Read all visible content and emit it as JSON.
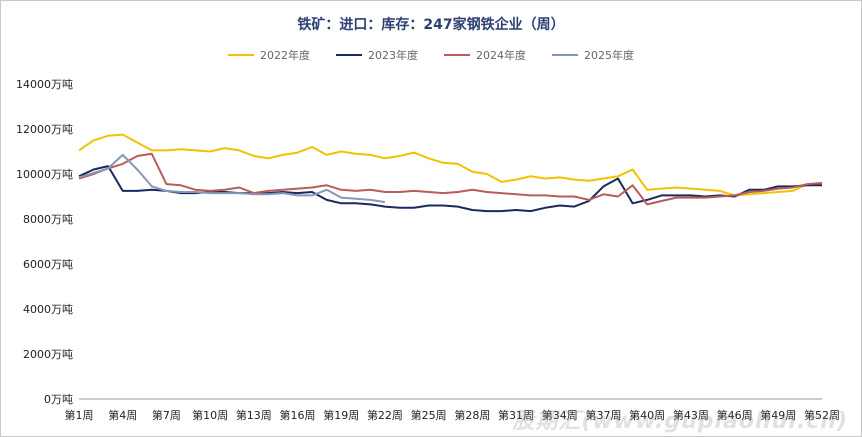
{
  "title": "铁矿：进口：库存：247家钢铁企业（周）",
  "watermark": "股期汇(www.gupiaohui.cn)",
  "chart_data": {
    "type": "line",
    "title": "铁矿：进口：库存：247家钢铁企业（周）",
    "unit": "万吨",
    "ylim": [
      0,
      14000
    ],
    "yticks": [
      0,
      2000,
      4000,
      6000,
      8000,
      10000,
      12000,
      14000
    ],
    "ytick_labels": [
      "0万吨",
      "2000万吨",
      "4000万吨",
      "6000万吨",
      "8000万吨",
      "10000万吨",
      "12000万吨",
      "14000万吨"
    ],
    "x_labels": [
      "第1周",
      "第4周",
      "第7周",
      "第10周",
      "第13周",
      "第16周",
      "第19周",
      "第22周",
      "第25周",
      "第28周",
      "第31周",
      "第34周",
      "第37周",
      "第40周",
      "第43周",
      "第46周",
      "第49周",
      "第52周"
    ],
    "x_label_weeks": [
      1,
      4,
      7,
      10,
      13,
      16,
      19,
      22,
      25,
      28,
      31,
      34,
      37,
      40,
      43,
      46,
      49,
      52
    ],
    "legend_position": "top",
    "grid": false,
    "series": [
      {
        "name": "2022年度",
        "color": "#f2c200",
        "values": [
          11050,
          11500,
          11700,
          11750,
          11400,
          11050,
          11050,
          11100,
          11050,
          11000,
          11150,
          11050,
          10800,
          10700,
          10850,
          10950,
          11200,
          10850,
          11000,
          10900,
          10850,
          10700,
          10800,
          10950,
          10700,
          10500,
          10450,
          10100,
          10000,
          9650,
          9750,
          9900,
          9800,
          9850,
          9750,
          9700,
          9800,
          9900,
          10200,
          9300,
          9350,
          9400,
          9350,
          9300,
          9250,
          9050,
          9100,
          9150,
          9200,
          9250,
          9550,
          9500
        ]
      },
      {
        "name": "2023年度",
        "color": "#1a2a5e",
        "values": [
          9900,
          10200,
          10350,
          9250,
          9250,
          9300,
          9250,
          9150,
          9150,
          9200,
          9200,
          9150,
          9150,
          9150,
          9200,
          9150,
          9200,
          8850,
          8700,
          8700,
          8650,
          8550,
          8500,
          8500,
          8600,
          8600,
          8550,
          8400,
          8350,
          8350,
          8400,
          8350,
          8500,
          8600,
          8550,
          8800,
          9450,
          9800,
          8700,
          8850,
          9050,
          9050,
          9050,
          9000,
          9050,
          9000,
          9300,
          9300,
          9450,
          9450,
          9500,
          9500
        ]
      },
      {
        "name": "2024年度",
        "color": "#b85c5c",
        "values": [
          9800,
          10000,
          10250,
          10450,
          10800,
          10900,
          9550,
          9500,
          9300,
          9250,
          9300,
          9400,
          9150,
          9250,
          9300,
          9350,
          9400,
          9500,
          9300,
          9250,
          9300,
          9200,
          9200,
          9250,
          9200,
          9150,
          9200,
          9300,
          9200,
          9150,
          9100,
          9050,
          9050,
          9000,
          9000,
          8850,
          9100,
          9000,
          9500,
          8650,
          8800,
          8950,
          8950,
          8950,
          9000,
          9050,
          9200,
          9250,
          9350,
          9400,
          9550,
          9600
        ]
      },
      {
        "name": "2025年度",
        "color": "#8896b8",
        "values": [
          9850,
          10050,
          10250,
          10850,
          10200,
          9450,
          9250,
          9200,
          9200,
          9150,
          9150,
          9150,
          9100,
          9100,
          9150,
          9050,
          9050,
          9300,
          8950,
          8900,
          8850,
          8750
        ]
      }
    ]
  }
}
